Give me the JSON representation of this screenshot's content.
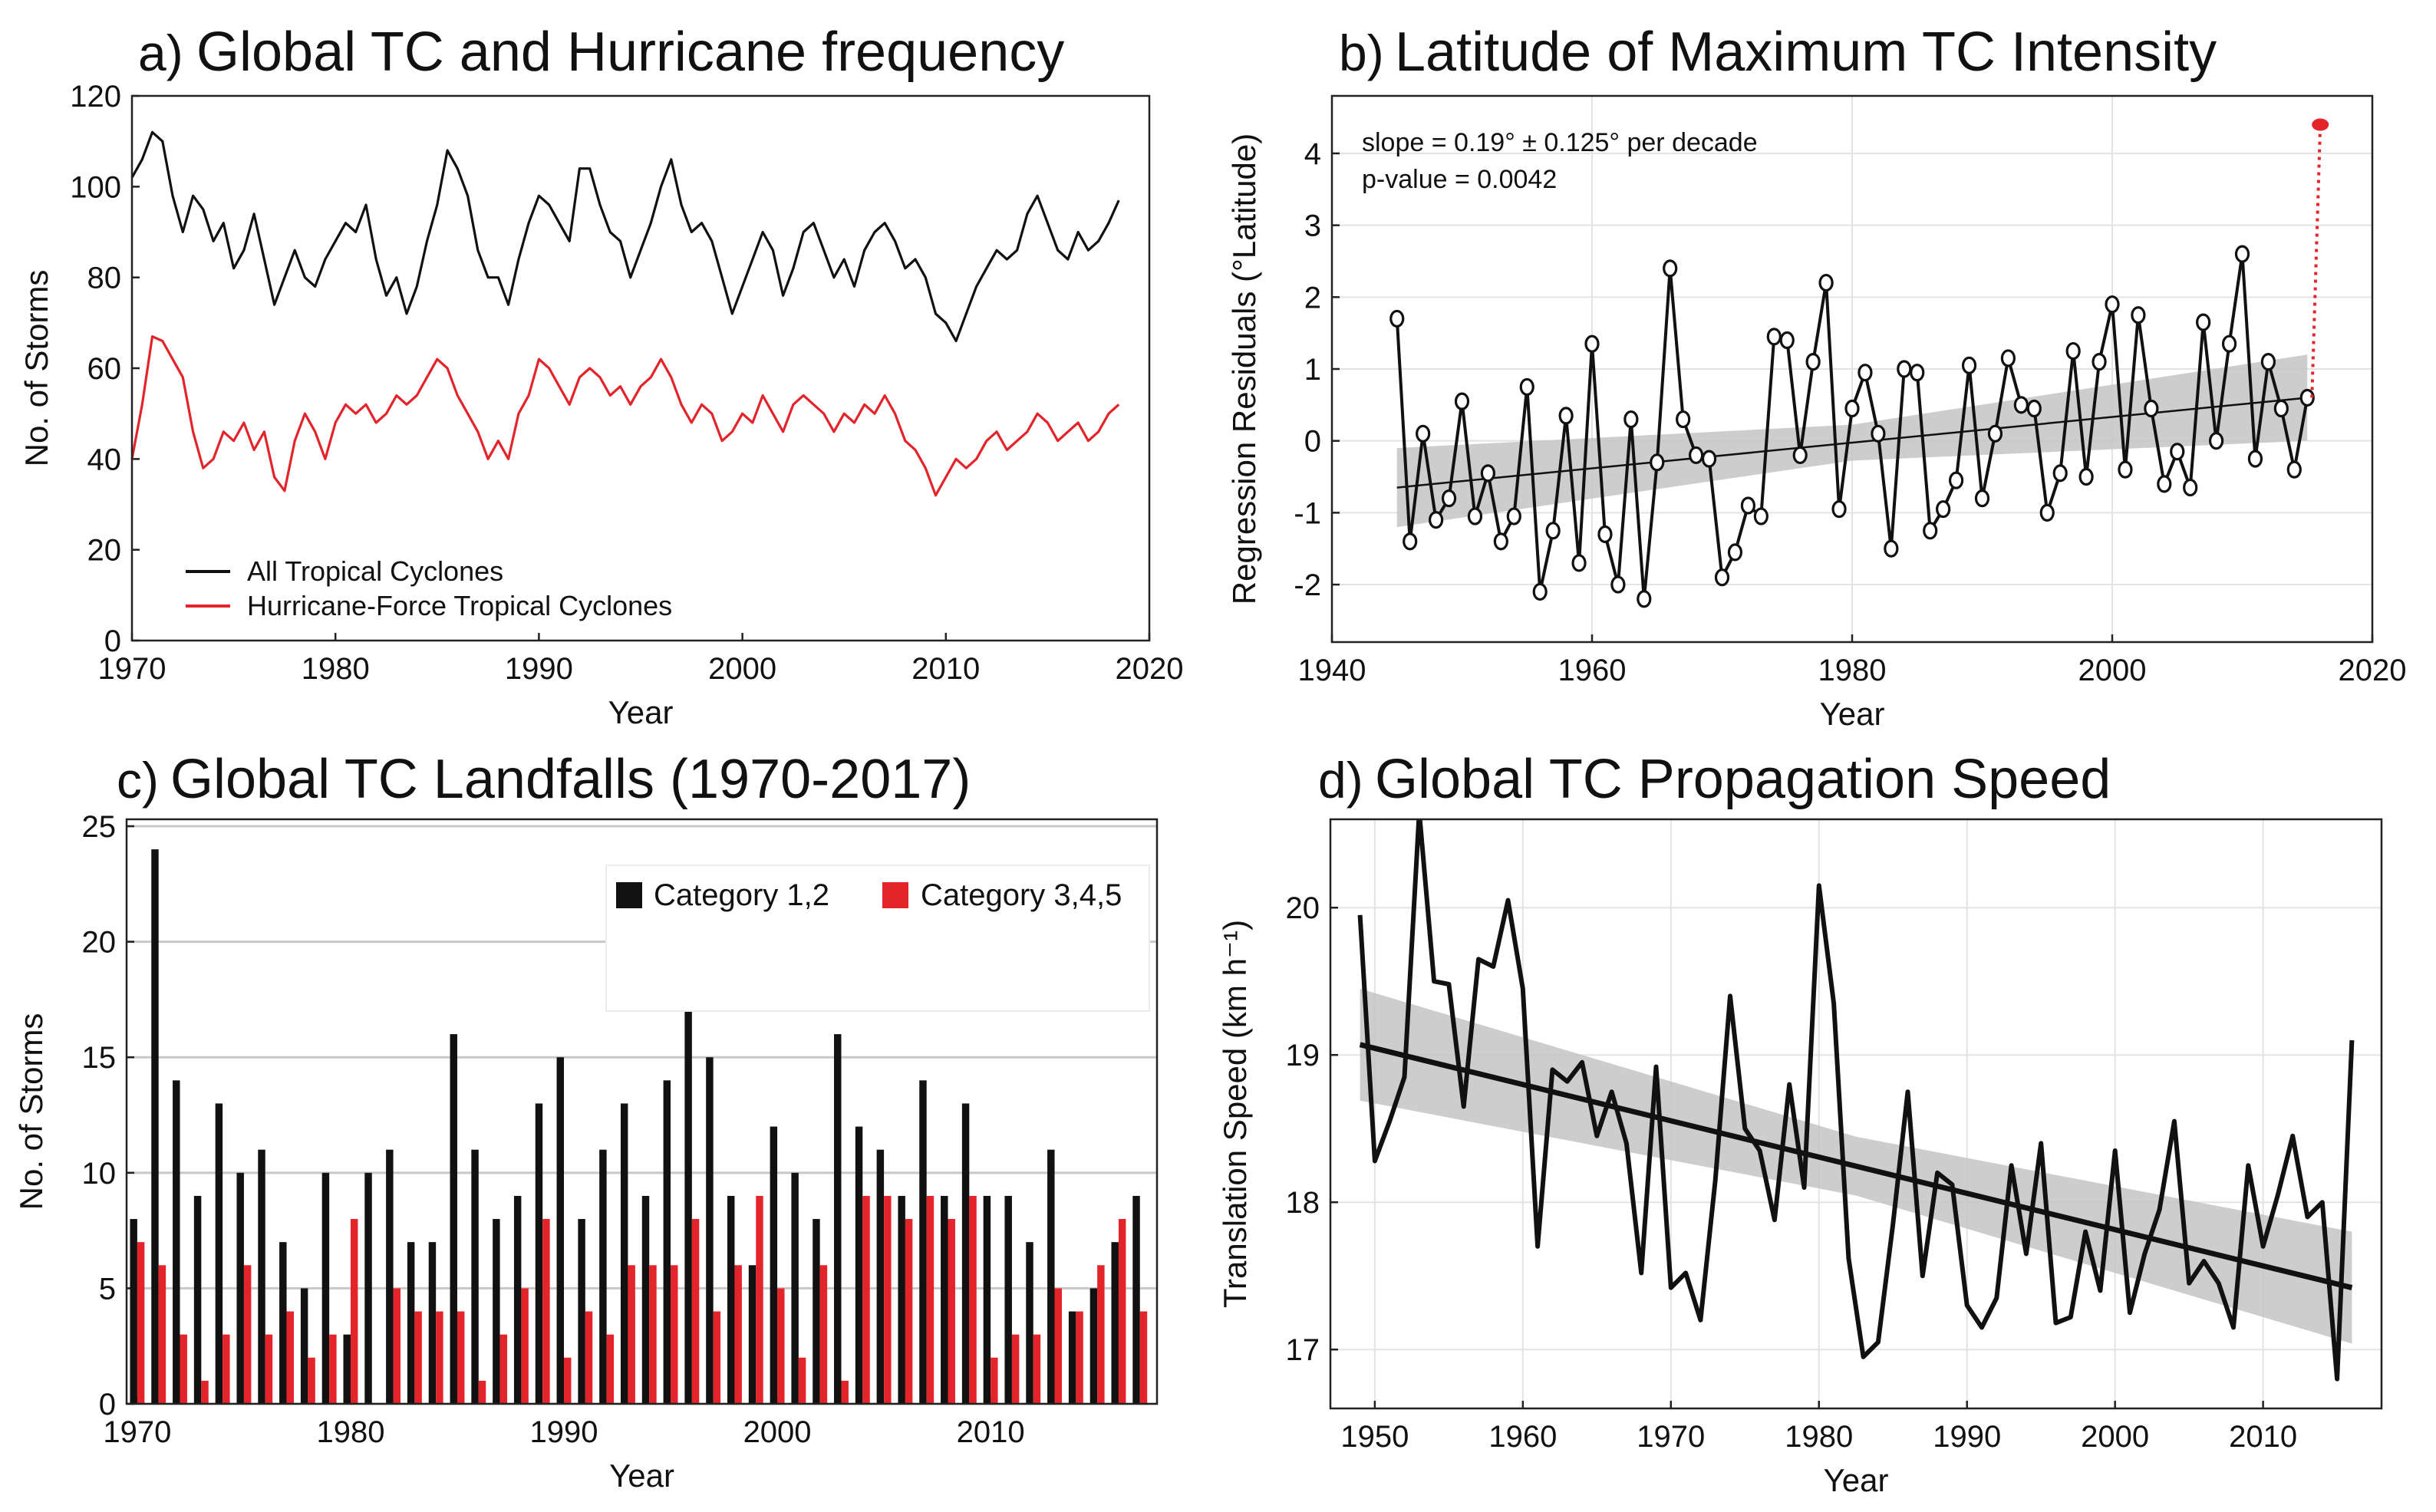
{
  "panels": [
    {
      "letter": "a)",
      "title": "Global TC and Hurricane frequency"
    },
    {
      "letter": "b)",
      "title": "Latitude of Maximum TC Intensity"
    },
    {
      "letter": "c)",
      "title": "Global TC Landfalls (1970-2017)"
    },
    {
      "letter": "d)",
      "title": "Global TC Propagation Speed"
    }
  ],
  "colors": {
    "black": "#111111",
    "red": "#e3242b",
    "band": "#c4c4c4"
  },
  "chart_data": [
    {
      "id": "a",
      "type": "line",
      "xlabel": "Year",
      "ylabel": "No. of Storms",
      "xlim": [
        1970,
        2020
      ],
      "ylim": [
        0,
        120
      ],
      "xticks": [
        1970,
        1980,
        1990,
        2000,
        2010,
        2020
      ],
      "yticks": [
        0,
        20,
        40,
        60,
        80,
        100,
        120
      ],
      "legend": "lower-left",
      "x": [
        1970.0,
        1970.5,
        1971.0,
        1971.5,
        1972.0,
        1972.5,
        1973.0,
        1973.5,
        1974.0,
        1974.5,
        1975.0,
        1975.5,
        1976.0,
        1976.5,
        1977.0,
        1977.5,
        1978.0,
        1978.5,
        1979.0,
        1979.5,
        1980.0,
        1980.5,
        1981.0,
        1981.5,
        1982.0,
        1982.5,
        1983.0,
        1983.5,
        1984.0,
        1984.5,
        1985.0,
        1985.5,
        1986.0,
        1986.5,
        1987.0,
        1987.5,
        1988.0,
        1988.5,
        1989.0,
        1989.5,
        1990.0,
        1990.5,
        1991.0,
        1991.5,
        1992.0,
        1992.5,
        1993.0,
        1993.5,
        1994.0,
        1994.5,
        1995.0,
        1995.5,
        1996.0,
        1996.5,
        1997.0,
        1997.5,
        1998.0,
        1998.5,
        1999.0,
        1999.5,
        2000.0,
        2000.5,
        2001.0,
        2001.5,
        2002.0,
        2002.5,
        2003.0,
        2003.5,
        2004.0,
        2004.5,
        2005.0,
        2005.5,
        2006.0,
        2006.5,
        2007.0,
        2007.5,
        2008.0,
        2008.5,
        2009.0,
        2009.5,
        2010.0,
        2010.5,
        2011.0,
        2011.5,
        2012.0,
        2012.5,
        2013.0,
        2013.5,
        2014.0,
        2014.5,
        2015.0,
        2015.5,
        2016.0,
        2016.5,
        2017.0,
        2017.5,
        2018.0,
        2018.5
      ],
      "series": [
        {
          "name": "All Tropical Cyclones",
          "color": "#111111",
          "values": [
            102,
            106,
            112,
            110,
            98,
            90,
            98,
            95,
            88,
            92,
            82,
            86,
            94,
            84,
            74,
            80,
            86,
            80,
            78,
            84,
            88,
            92,
            90,
            96,
            84,
            76,
            80,
            72,
            78,
            88,
            96,
            108,
            104,
            98,
            86,
            80,
            80,
            74,
            84,
            92,
            98,
            96,
            92,
            88,
            104,
            104,
            96,
            90,
            88,
            80,
            86,
            92,
            100,
            106,
            96,
            90,
            92,
            88,
            80,
            72,
            78,
            84,
            90,
            86,
            76,
            82,
            90,
            92,
            86,
            80,
            84,
            78,
            86,
            90,
            92,
            88,
            82,
            84,
            80,
            72,
            70,
            66,
            72,
            78,
            82,
            86,
            84,
            86,
            94,
            98,
            92,
            86,
            84,
            90,
            86,
            88,
            92,
            97
          ]
        },
        {
          "name": "Hurricane-Force Tropical Cyclones",
          "color": "#e3242b",
          "values": [
            40,
            52,
            67,
            66,
            62,
            58,
            46,
            38,
            40,
            46,
            44,
            48,
            42,
            46,
            36,
            33,
            44,
            50,
            46,
            40,
            48,
            52,
            50,
            52,
            48,
            50,
            54,
            52,
            54,
            58,
            62,
            60,
            54,
            50,
            46,
            40,
            44,
            40,
            50,
            54,
            62,
            60,
            56,
            52,
            58,
            60,
            58,
            54,
            56,
            52,
            56,
            58,
            62,
            58,
            52,
            48,
            52,
            50,
            44,
            46,
            50,
            48,
            54,
            50,
            46,
            52,
            54,
            52,
            50,
            46,
            50,
            48,
            52,
            50,
            54,
            50,
            44,
            42,
            38,
            32,
            36,
            40,
            38,
            40,
            44,
            46,
            42,
            44,
            46,
            50,
            48,
            44,
            46,
            48,
            44,
            46,
            50,
            52
          ]
        }
      ]
    },
    {
      "id": "b",
      "type": "line",
      "xlabel": "Year",
      "ylabel": "Regression Residuals (°Latitude)",
      "xlim": [
        1940,
        2020
      ],
      "ylim": [
        -2.8,
        4.8
      ],
      "xticks": [
        1940,
        1960,
        1980,
        2000,
        2020
      ],
      "yticks": [
        -2,
        -1,
        0,
        1,
        2,
        3,
        4
      ],
      "annotation_slope": "slope = 0.19° ± 0.125° per decade",
      "annotation_p": "p-value = 0.0042",
      "x": [
        1945,
        1946,
        1947,
        1948,
        1949,
        1950,
        1951,
        1952,
        1953,
        1954,
        1955,
        1956,
        1957,
        1958,
        1959,
        1960,
        1961,
        1962,
        1963,
        1964,
        1965,
        1966,
        1967,
        1968,
        1969,
        1970,
        1971,
        1972,
        1973,
        1974,
        1975,
        1976,
        1977,
        1978,
        1979,
        1980,
        1981,
        1982,
        1983,
        1984,
        1985,
        1986,
        1987,
        1988,
        1989,
        1990,
        1991,
        1992,
        1993,
        1994,
        1995,
        1996,
        1997,
        1998,
        1999,
        2000,
        2001,
        2002,
        2003,
        2004,
        2005,
        2006,
        2007,
        2008,
        2009,
        2010,
        2011,
        2012,
        2013,
        2014,
        2015
      ],
      "values": [
        1.7,
        -1.4,
        0.1,
        -1.1,
        -0.8,
        0.55,
        -1.05,
        -0.45,
        -1.4,
        -1.05,
        0.75,
        -2.1,
        -1.25,
        0.35,
        -1.7,
        1.35,
        -1.3,
        -2.0,
        0.3,
        -2.2,
        -0.3,
        2.4,
        0.3,
        -0.2,
        -0.25,
        -1.9,
        -1.55,
        -0.9,
        -1.05,
        1.45,
        1.4,
        -0.2,
        1.1,
        2.2,
        -0.95,
        0.45,
        0.95,
        0.1,
        -1.5,
        1.0,
        0.95,
        -1.25,
        -0.95,
        -0.55,
        1.05,
        -0.8,
        0.1,
        1.15,
        0.5,
        0.45,
        -1.0,
        -0.45,
        1.25,
        -0.5,
        1.1,
        1.9,
        -0.4,
        1.75,
        0.45,
        -0.6,
        -0.15,
        -0.65,
        1.65,
        0.0,
        1.35,
        2.6,
        -0.25,
        1.1,
        0.45,
        -0.4,
        0.6
      ],
      "outlier": {
        "x": 2016,
        "y": 4.4
      },
      "trend": {
        "x0": 1945,
        "y0": -0.65,
        "x1": 2015,
        "y1": 0.6
      },
      "band_halfwidth_ends": [
        0.55,
        0.6
      ]
    },
    {
      "id": "c",
      "type": "bar",
      "xlabel": "Year",
      "ylabel": "No. of Storms",
      "xlim": [
        1969.5,
        2017.8
      ],
      "ylim": [
        0,
        25.3
      ],
      "xticks": [
        1970,
        1980,
        1990,
        2000,
        2010
      ],
      "yticks": [
        0,
        5,
        10,
        15,
        20,
        25
      ],
      "legend": "top-right",
      "categories": [
        1970,
        1971,
        1972,
        1973,
        1974,
        1975,
        1976,
        1977,
        1978,
        1979,
        1980,
        1981,
        1982,
        1983,
        1984,
        1985,
        1986,
        1987,
        1988,
        1989,
        1990,
        1991,
        1992,
        1993,
        1994,
        1995,
        1996,
        1997,
        1998,
        1999,
        2000,
        2001,
        2002,
        2003,
        2004,
        2005,
        2006,
        2007,
        2008,
        2009,
        2010,
        2011,
        2012,
        2013,
        2014,
        2015,
        2016,
        2017
      ],
      "series": [
        {
          "name": "Category 1,2",
          "color": "#111111",
          "values": [
            8,
            24,
            14,
            9,
            13,
            10,
            11,
            7,
            5,
            10,
            3,
            10,
            11,
            7,
            7,
            16,
            11,
            8,
            9,
            13,
            15,
            8,
            11,
            13,
            9,
            14,
            17,
            15,
            9,
            6,
            12,
            10,
            8,
            16,
            12,
            11,
            9,
            14,
            9,
            13,
            9,
            9,
            7,
            11,
            4,
            5,
            7,
            9
          ]
        },
        {
          "name": "Category 3,4,5",
          "color": "#e3242b",
          "values": [
            7,
            6,
            3,
            1,
            3,
            6,
            3,
            4,
            2,
            3,
            8,
            0,
            5,
            4,
            4,
            4,
            1,
            3,
            5,
            8,
            2,
            4,
            3,
            6,
            6,
            6,
            8,
            4,
            6,
            9,
            5,
            2,
            6,
            1,
            9,
            9,
            8,
            9,
            8,
            9,
            2,
            3,
            3,
            5,
            4,
            6,
            8,
            4
          ]
        }
      ]
    },
    {
      "id": "d",
      "type": "line",
      "xlabel": "Year",
      "ylabel": "Translation Speed (km h⁻¹)",
      "xlim": [
        1947,
        2018
      ],
      "ylim": [
        16.6,
        20.6
      ],
      "xticks": [
        1950,
        1960,
        1970,
        1980,
        1990,
        2000,
        2010
      ],
      "yticks": [
        17,
        18,
        19,
        20
      ],
      "x": [
        1949,
        1950,
        1951,
        1952,
        1953,
        1954,
        1955,
        1956,
        1957,
        1958,
        1959,
        1960,
        1961,
        1962,
        1963,
        1964,
        1965,
        1966,
        1967,
        1968,
        1969,
        1970,
        1971,
        1972,
        1973,
        1974,
        1975,
        1976,
        1977,
        1978,
        1979,
        1980,
        1981,
        1982,
        1983,
        1984,
        1985,
        1986,
        1987,
        1988,
        1989,
        1990,
        1991,
        1992,
        1993,
        1994,
        1995,
        1996,
        1997,
        1998,
        1999,
        2000,
        2001,
        2002,
        2003,
        2004,
        2005,
        2006,
        2007,
        2008,
        2009,
        2010,
        2011,
        2012,
        2013,
        2014,
        2015,
        2016
      ],
      "values": [
        19.95,
        18.28,
        18.55,
        18.85,
        20.65,
        19.5,
        19.48,
        18.65,
        19.65,
        19.6,
        20.05,
        19.45,
        17.7,
        18.9,
        18.82,
        18.95,
        18.45,
        18.75,
        18.4,
        17.52,
        18.92,
        17.42,
        17.52,
        17.2,
        18.15,
        19.4,
        18.5,
        18.35,
        17.88,
        18.8,
        18.1,
        20.15,
        19.35,
        17.62,
        16.95,
        17.05,
        17.85,
        18.75,
        17.5,
        18.2,
        18.12,
        17.3,
        17.15,
        17.35,
        18.25,
        17.65,
        18.4,
        17.18,
        17.22,
        17.8,
        17.4,
        18.35,
        17.25,
        17.65,
        17.95,
        18.55,
        17.45,
        17.6,
        17.45,
        17.15,
        18.25,
        17.7,
        18.05,
        18.45,
        17.9,
        18.0,
        16.8,
        19.1
      ],
      "trend": {
        "x0": 1949,
        "y0": 19.07,
        "x1": 2016,
        "y1": 17.42
      },
      "band_halfwidth_ends": [
        0.38,
        0.38
      ]
    }
  ]
}
